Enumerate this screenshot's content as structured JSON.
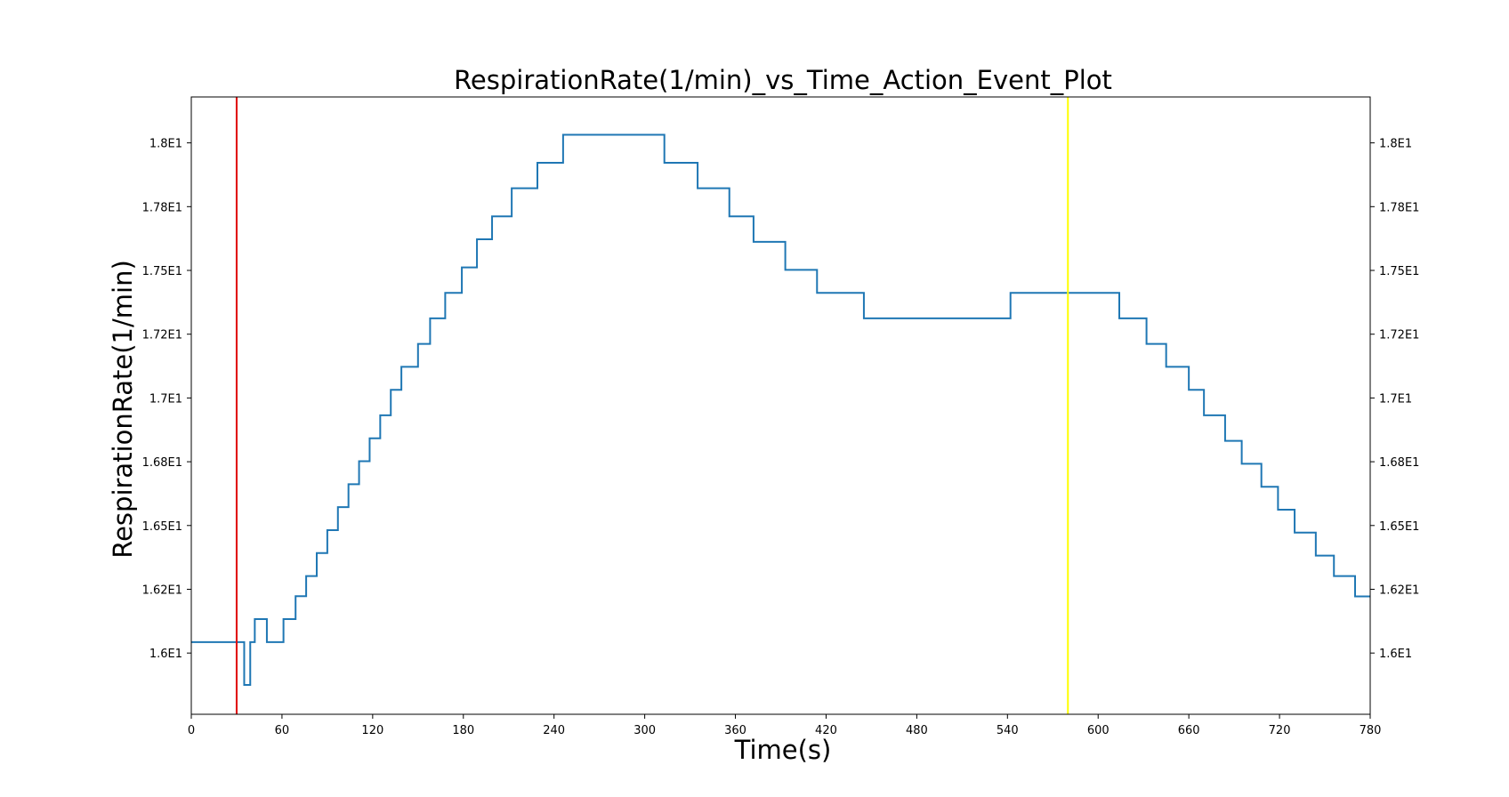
{
  "chart_data": {
    "type": "line",
    "title": "RespirationRate(1/min)_vs_Time_Action_Event_Plot",
    "xlabel": "Time(s)",
    "ylabel": "RespirationRate(1/min)",
    "xlim": [
      0,
      780
    ],
    "ylim": [
      15.76,
      18.18
    ],
    "xticks": [
      0,
      60,
      120,
      180,
      240,
      300,
      360,
      420,
      480,
      540,
      600,
      660,
      720,
      780
    ],
    "xtick_labels": [
      "0",
      "60",
      "120",
      "180",
      "240",
      "300",
      "360",
      "420",
      "480",
      "540",
      "600",
      "660",
      "720",
      "780"
    ],
    "yticks": [
      16.0,
      16.25,
      16.5,
      16.75,
      17.0,
      17.25,
      17.5,
      17.75,
      18.0
    ],
    "ytick_labels": [
      "1.6E1",
      "1.62E1",
      "1.65E1",
      "1.68E1",
      "1.7E1",
      "1.72E1",
      "1.75E1",
      "1.78E1",
      "1.8E1"
    ],
    "grid": false,
    "right_axis_mirror": true,
    "series": [
      {
        "color": "#1f77b4",
        "step": true,
        "points": [
          [
            0,
            16.043
          ],
          [
            35,
            16.043
          ],
          [
            35,
            15.875
          ],
          [
            39,
            15.875
          ],
          [
            39,
            16.043
          ],
          [
            42,
            16.043
          ],
          [
            42,
            16.133
          ],
          [
            50,
            16.133
          ],
          [
            50,
            16.043
          ],
          [
            61,
            16.043
          ],
          [
            61,
            16.133
          ],
          [
            69,
            16.133
          ],
          [
            69,
            16.223
          ],
          [
            76,
            16.223
          ],
          [
            76,
            16.302
          ],
          [
            83,
            16.302
          ],
          [
            83,
            16.392
          ],
          [
            90,
            16.392
          ],
          [
            90,
            16.482
          ],
          [
            97,
            16.482
          ],
          [
            97,
            16.572
          ],
          [
            104,
            16.572
          ],
          [
            104,
            16.662
          ],
          [
            111,
            16.662
          ],
          [
            111,
            16.752
          ],
          [
            118,
            16.752
          ],
          [
            118,
            16.842
          ],
          [
            125,
            16.842
          ],
          [
            125,
            16.932
          ],
          [
            132,
            16.932
          ],
          [
            132,
            17.032
          ],
          [
            139,
            17.032
          ],
          [
            139,
            17.122
          ],
          [
            150,
            17.122
          ],
          [
            150,
            17.212
          ],
          [
            158,
            17.212
          ],
          [
            158,
            17.312
          ],
          [
            168,
            17.312
          ],
          [
            168,
            17.412
          ],
          [
            179,
            17.412
          ],
          [
            179,
            17.512
          ],
          [
            189,
            17.512
          ],
          [
            189,
            17.622
          ],
          [
            199,
            17.622
          ],
          [
            199,
            17.712
          ],
          [
            212,
            17.712
          ],
          [
            212,
            17.822
          ],
          [
            229,
            17.822
          ],
          [
            229,
            17.922
          ],
          [
            246,
            17.922
          ],
          [
            246,
            18.032
          ],
          [
            313,
            18.032
          ],
          [
            313,
            17.922
          ],
          [
            335,
            17.922
          ],
          [
            335,
            17.822
          ],
          [
            356,
            17.822
          ],
          [
            356,
            17.712
          ],
          [
            372,
            17.712
          ],
          [
            372,
            17.612
          ],
          [
            393,
            17.612
          ],
          [
            393,
            17.502
          ],
          [
            414,
            17.502
          ],
          [
            414,
            17.412
          ],
          [
            445,
            17.412
          ],
          [
            445,
            17.312
          ],
          [
            542,
            17.312
          ],
          [
            542,
            17.412
          ],
          [
            614,
            17.412
          ],
          [
            614,
            17.312
          ],
          [
            632,
            17.312
          ],
          [
            632,
            17.212
          ],
          [
            645,
            17.212
          ],
          [
            645,
            17.122
          ],
          [
            660,
            17.122
          ],
          [
            660,
            17.032
          ],
          [
            670,
            17.032
          ],
          [
            670,
            16.932
          ],
          [
            684,
            16.932
          ],
          [
            684,
            16.832
          ],
          [
            695,
            16.832
          ],
          [
            695,
            16.742
          ],
          [
            708,
            16.742
          ],
          [
            708,
            16.652
          ],
          [
            719,
            16.652
          ],
          [
            719,
            16.562
          ],
          [
            730,
            16.562
          ],
          [
            730,
            16.472
          ],
          [
            744,
            16.472
          ],
          [
            744,
            16.382
          ],
          [
            756,
            16.382
          ],
          [
            756,
            16.302
          ],
          [
            770,
            16.302
          ],
          [
            770,
            16.222
          ],
          [
            780,
            16.222
          ]
        ]
      }
    ],
    "event_lines": [
      {
        "x": 30,
        "color": "#e00000"
      },
      {
        "x": 580,
        "color": "#ffff00"
      }
    ]
  }
}
